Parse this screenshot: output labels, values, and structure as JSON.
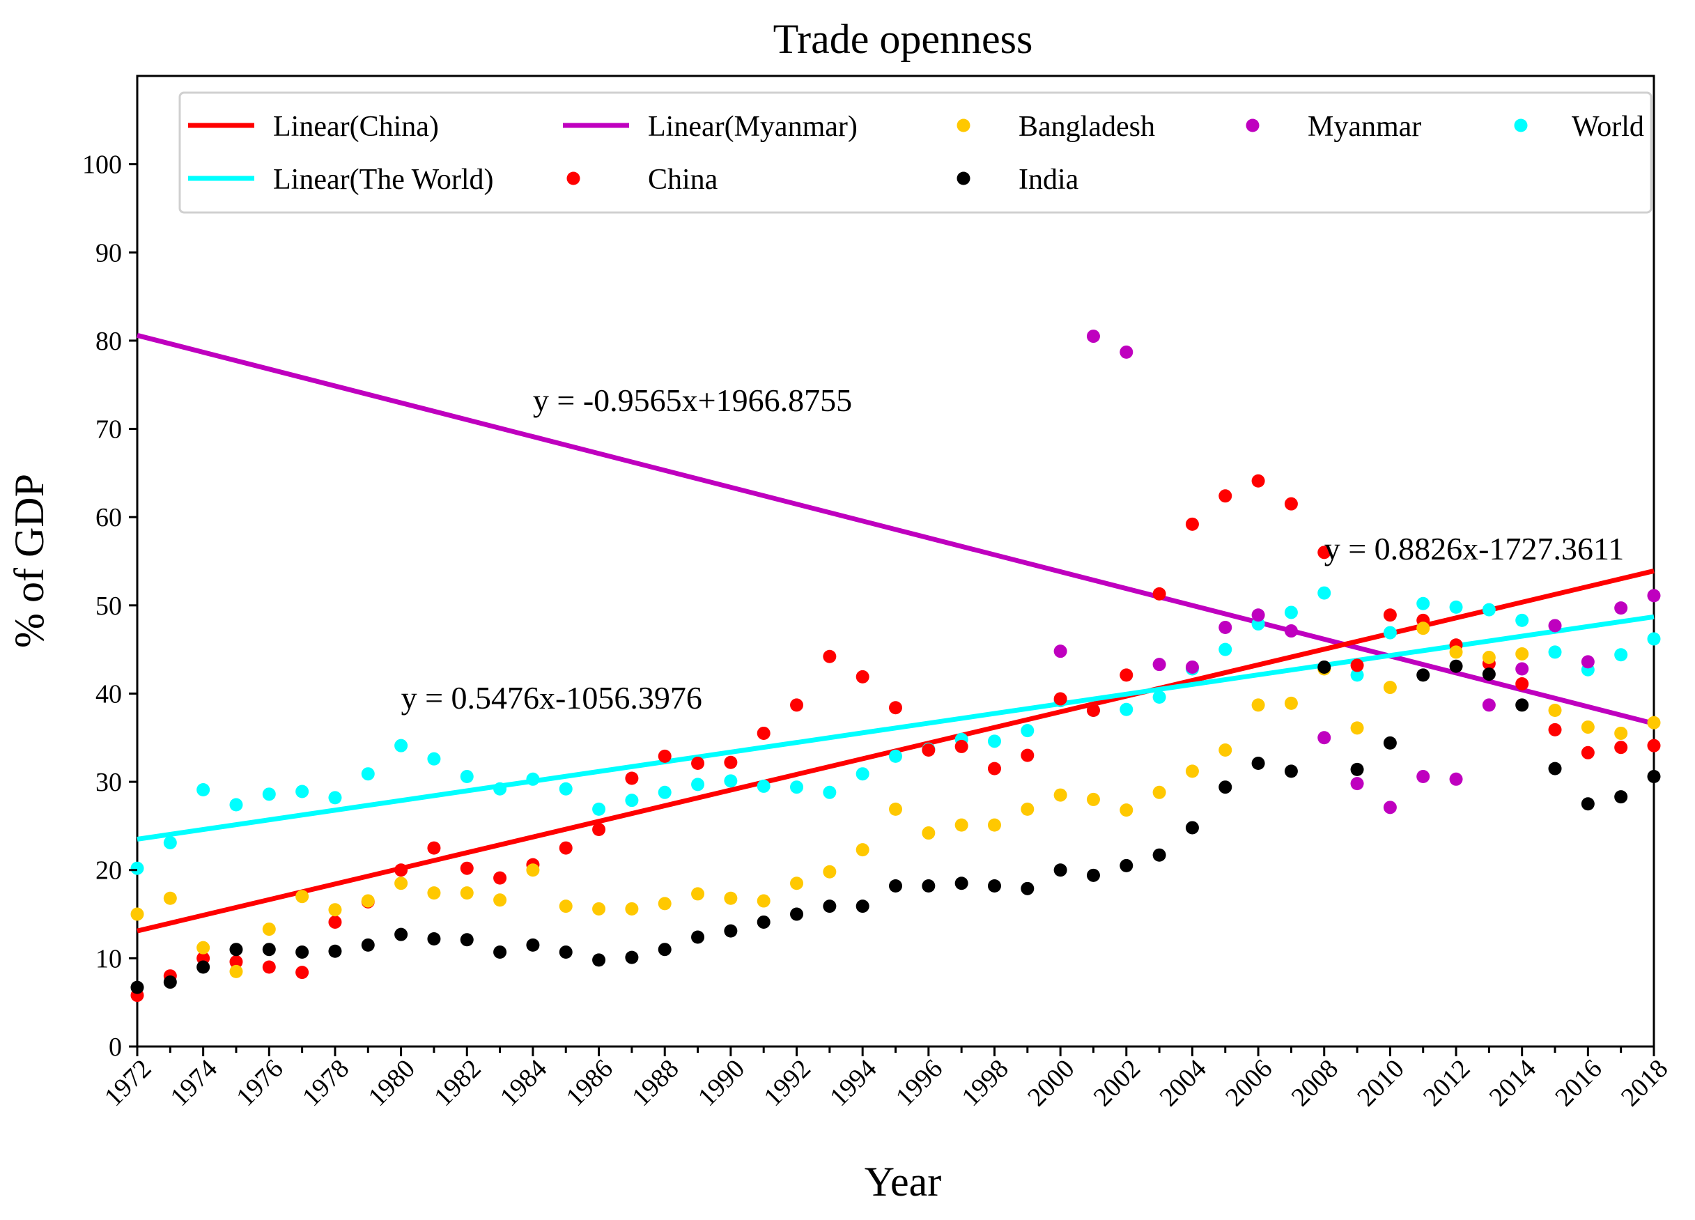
{
  "chart_data": {
    "type": "scatter",
    "title": "Trade openness",
    "xlabel": "Year",
    "ylabel": "% of GDP",
    "xlim": [
      1972,
      2018
    ],
    "ylim": [
      0,
      110
    ],
    "xticks": [
      "1972",
      "1974",
      "1976",
      "1978",
      "1980",
      "1982",
      "1984",
      "1986",
      "1988",
      "1990",
      "1992",
      "1994",
      "1996",
      "1998",
      "2000",
      "2002",
      "2004",
      "2006",
      "2008",
      "2010",
      "2012",
      "2014",
      "2016",
      "2018"
    ],
    "yticks": [
      "0",
      "10",
      "20",
      "30",
      "40",
      "50",
      "60",
      "70",
      "80",
      "90",
      "100"
    ],
    "legend": {
      "position": "top",
      "entries": [
        {
          "label": "Linear(China)",
          "kind": "line",
          "color": "#ff0000"
        },
        {
          "label": "Linear(Myanmar)",
          "kind": "line",
          "color": "#bf00bf"
        },
        {
          "label": "Bangladesh",
          "kind": "dot",
          "color": "#ffc800"
        },
        {
          "label": "Myanmar",
          "kind": "dot",
          "color": "#bf00bf"
        },
        {
          "label": "World",
          "kind": "dot",
          "color": "#00ffff"
        },
        {
          "label": "Linear(The World)",
          "kind": "line",
          "color": "#00ffff"
        },
        {
          "label": "China",
          "kind": "dot",
          "color": "#ff0000"
        },
        {
          "label": "India",
          "kind": "dot",
          "color": "#000000"
        }
      ]
    },
    "trendlines": [
      {
        "name": "Linear(Myanmar)",
        "color": "#bf00bf",
        "x": [
          1972,
          2018
        ],
        "y": [
          80.6,
          36.6
        ],
        "equation": "y = -0.9565x+1966.8755",
        "label_at": [
          1984,
          72
        ]
      },
      {
        "name": "Linear(China)",
        "color": "#ff0000",
        "x": [
          1972,
          2018
        ],
        "y": [
          13.1,
          53.9
        ],
        "equation": "y = 0.8826x-1727.3611",
        "label_at": [
          2008,
          55.2
        ]
      },
      {
        "name": "Linear(The World)",
        "color": "#00ffff",
        "x": [
          1972,
          2018
        ],
        "y": [
          23.5,
          48.7
        ],
        "equation": "y = 0.5476x-1056.3976",
        "label_at": [
          1980,
          38.3
        ]
      }
    ],
    "series": [
      {
        "name": "World",
        "color": "#00ffff",
        "x": [
          1972,
          1973,
          1974,
          1975,
          1976,
          1977,
          1978,
          1979,
          1980,
          1981,
          1982,
          1983,
          1984,
          1985,
          1986,
          1987,
          1988,
          1989,
          1990,
          1991,
          1992,
          1993,
          1994,
          1995,
          1996,
          1997,
          1998,
          1999,
          2000,
          2001,
          2002,
          2003,
          2004,
          2005,
          2006,
          2007,
          2008,
          2009,
          2010,
          2011,
          2012,
          2013,
          2014,
          2015,
          2016,
          2017,
          2018
        ],
        "values": [
          20.2,
          23.1,
          29.1,
          27.4,
          28.6,
          28.9,
          28.2,
          30.9,
          34.1,
          32.6,
          30.6,
          29.2,
          30.3,
          29.2,
          26.9,
          27.9,
          28.8,
          29.7,
          30.1,
          29.5,
          29.4,
          28.8,
          30.9,
          32.9,
          33.7,
          34.8,
          34.6,
          35.8,
          39.2,
          38.1,
          38.2,
          39.6,
          42.8,
          45.0,
          47.9,
          49.2,
          51.4,
          42.1,
          46.9,
          50.2,
          49.8,
          49.5,
          48.3,
          44.7,
          42.7,
          44.4,
          46.2
        ]
      },
      {
        "name": "China",
        "color": "#ff0000",
        "x": [
          1972,
          1973,
          1974,
          1975,
          1976,
          1977,
          1978,
          1979,
          1980,
          1981,
          1982,
          1983,
          1984,
          1985,
          1986,
          1987,
          1988,
          1989,
          1990,
          1991,
          1992,
          1993,
          1994,
          1995,
          1996,
          1997,
          1998,
          1999,
          2000,
          2001,
          2002,
          2003,
          2004,
          2005,
          2006,
          2007,
          2008,
          2009,
          2010,
          2011,
          2012,
          2013,
          2014,
          2015,
          2016,
          2017,
          2018
        ],
        "values": [
          5.8,
          8.0,
          10.0,
          9.6,
          9.0,
          8.4,
          14.1,
          16.4,
          20.0,
          22.5,
          20.2,
          19.1,
          20.6,
          22.5,
          24.6,
          30.4,
          32.9,
          32.1,
          32.2,
          35.5,
          38.7,
          44.2,
          41.9,
          38.4,
          33.6,
          34.0,
          31.5,
          33.0,
          39.4,
          38.1,
          42.1,
          51.3,
          59.2,
          62.4,
          64.1,
          61.5,
          56.0,
          43.2,
          48.9,
          48.3,
          45.5,
          43.4,
          41.1,
          35.9,
          33.3,
          33.9,
          34.1
        ]
      },
      {
        "name": "Bangladesh",
        "color": "#ffc800",
        "x": [
          1972,
          1973,
          1974,
          1975,
          1976,
          1977,
          1978,
          1979,
          1980,
          1981,
          1982,
          1983,
          1984,
          1985,
          1986,
          1987,
          1988,
          1989,
          1990,
          1991,
          1992,
          1993,
          1994,
          1995,
          1996,
          1997,
          1998,
          1999,
          2000,
          2001,
          2002,
          2003,
          2004,
          2005,
          2006,
          2007,
          2008,
          2009,
          2010,
          2011,
          2012,
          2013,
          2014,
          2015,
          2016,
          2017,
          2018
        ],
        "values": [
          15.0,
          16.8,
          11.2,
          8.5,
          13.3,
          17.0,
          15.5,
          16.5,
          18.5,
          17.4,
          17.4,
          16.6,
          20.0,
          15.9,
          15.6,
          15.6,
          16.2,
          17.3,
          16.8,
          16.5,
          18.5,
          19.8,
          22.3,
          26.9,
          24.2,
          25.1,
          25.1,
          26.9,
          28.5,
          28.0,
          26.8,
          28.8,
          31.2,
          33.6,
          38.7,
          38.9,
          42.8,
          36.1,
          40.7,
          47.4,
          44.7,
          44.1,
          44.5,
          38.1,
          36.2,
          35.5,
          36.7
        ]
      },
      {
        "name": "India",
        "color": "#000000",
        "x": [
          1972,
          1973,
          1974,
          1975,
          1976,
          1977,
          1978,
          1979,
          1980,
          1981,
          1982,
          1983,
          1984,
          1985,
          1986,
          1987,
          1988,
          1989,
          1990,
          1991,
          1992,
          1993,
          1994,
          1995,
          1996,
          1997,
          1998,
          1999,
          2000,
          2001,
          2002,
          2003,
          2004,
          2005,
          2006,
          2007,
          2008,
          2009,
          2010,
          2011,
          2012,
          2013,
          2014,
          2015,
          2016,
          2017,
          2018
        ],
        "values": [
          6.7,
          7.3,
          9.0,
          11.0,
          11.0,
          10.7,
          10.8,
          11.5,
          12.7,
          12.2,
          12.1,
          10.7,
          11.5,
          10.7,
          9.8,
          10.1,
          11.0,
          12.4,
          13.1,
          14.1,
          15.0,
          15.9,
          15.9,
          18.2,
          18.2,
          18.5,
          18.2,
          17.9,
          20.0,
          19.4,
          20.5,
          21.7,
          24.8,
          29.4,
          32.1,
          31.2,
          43.0,
          31.4,
          34.4,
          42.1,
          43.1,
          42.2,
          38.7,
          31.5,
          27.5,
          28.3,
          30.6
        ]
      },
      {
        "name": "Myanmar",
        "color": "#bf00bf",
        "x": [
          2000,
          2001,
          2002,
          2003,
          2004,
          2005,
          2006,
          2007,
          2008,
          2009,
          2010,
          2011,
          2012,
          2013,
          2014,
          2015,
          2016,
          2017,
          2018
        ],
        "values": [
          44.8,
          80.5,
          78.7,
          43.3,
          43.0,
          47.5,
          48.9,
          47.1,
          35.0,
          29.8,
          27.1,
          30.6,
          30.3,
          38.7,
          42.8,
          47.7,
          43.6,
          49.7,
          51.1
        ]
      }
    ]
  }
}
